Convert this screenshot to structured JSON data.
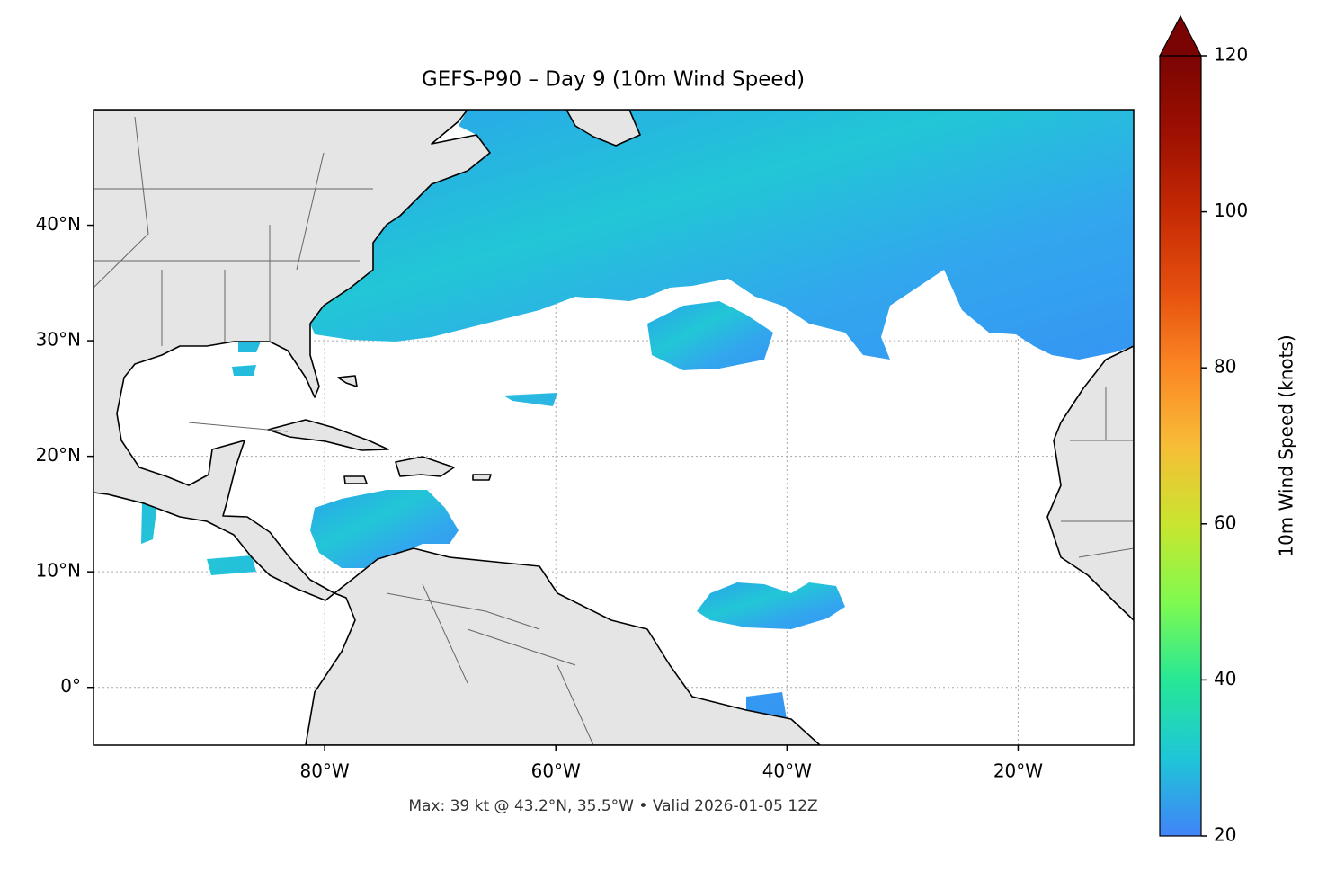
{
  "chart_data": {
    "type": "map",
    "title": "GEFS-P90 – Day 9 (10m Wind Speed)",
    "footnote": "Max: 39 kt @ 43.2°N, 35.5°W • Valid 2026-01-05 12Z",
    "xlim": [
      -100,
      -10
    ],
    "ylim": [
      -5,
      50
    ],
    "xticks": [
      {
        "value": -80,
        "label": "80°W"
      },
      {
        "value": -60,
        "label": "60°W"
      },
      {
        "value": -40,
        "label": "40°W"
      },
      {
        "value": -20,
        "label": "20°W"
      }
    ],
    "yticks": [
      {
        "value": 0,
        "label": "0°"
      },
      {
        "value": 10,
        "label": "10°N"
      },
      {
        "value": 20,
        "label": "20°N"
      },
      {
        "value": 30,
        "label": "30°N"
      },
      {
        "value": 40,
        "label": "40°N"
      }
    ],
    "grid": true,
    "colorbar": {
      "label": "10m Wind Speed (knots)",
      "lim": [
        20,
        120
      ],
      "ticks": [
        20,
        40,
        60,
        80,
        100,
        120
      ]
    }
  }
}
